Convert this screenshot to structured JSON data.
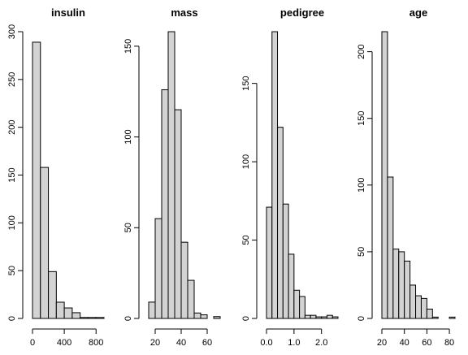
{
  "colors": {
    "bar_fill": "#d3d3d3",
    "bar_stroke": "#000000",
    "axis": "#000000",
    "background": "#ffffff"
  },
  "chart_data": [
    {
      "type": "bar",
      "title": "insulin",
      "xlabel": "",
      "ylabel": "",
      "bins": [
        [
          0,
          100
        ],
        [
          100,
          200
        ],
        [
          200,
          300
        ],
        [
          300,
          400
        ],
        [
          400,
          500
        ],
        [
          500,
          600
        ],
        [
          600,
          700
        ],
        [
          700,
          800
        ],
        [
          800,
          900
        ]
      ],
      "values": [
        289,
        158,
        49,
        17,
        11,
        6,
        1,
        1,
        1
      ],
      "xticks": [
        0,
        400,
        800
      ],
      "xtick_labels": [
        "0",
        "400",
        "800"
      ],
      "yticks": [
        0,
        50,
        100,
        150,
        200,
        250,
        300
      ],
      "ytick_labels": [
        "0",
        "50",
        "100",
        "150",
        "200",
        "250",
        "300"
      ],
      "xlim": [
        0,
        900
      ],
      "ylim": [
        0,
        300
      ],
      "grid": false
    },
    {
      "type": "bar",
      "title": "mass",
      "xlabel": "",
      "ylabel": "",
      "bins": [
        [
          15,
          20
        ],
        [
          20,
          25
        ],
        [
          25,
          30
        ],
        [
          30,
          35
        ],
        [
          35,
          40
        ],
        [
          40,
          45
        ],
        [
          45,
          50
        ],
        [
          50,
          55
        ],
        [
          55,
          60
        ],
        [
          60,
          65
        ],
        [
          65,
          70
        ]
      ],
      "values": [
        9,
        55,
        126,
        158,
        115,
        42,
        21,
        3,
        2,
        0,
        1
      ],
      "xticks": [
        20,
        40,
        60
      ],
      "xtick_labels": [
        "20",
        "40",
        "60"
      ],
      "yticks": [
        0,
        50,
        100,
        150
      ],
      "ytick_labels": [
        "0",
        "50",
        "100",
        "150"
      ],
      "xlim": [
        15,
        70
      ],
      "ylim": [
        0,
        158
      ],
      "grid": false
    },
    {
      "type": "bar",
      "title": "pedigree",
      "xlabel": "",
      "ylabel": "",
      "bins": [
        [
          0,
          0.2
        ],
        [
          0.2,
          0.4
        ],
        [
          0.4,
          0.6
        ],
        [
          0.6,
          0.8
        ],
        [
          0.8,
          1.0
        ],
        [
          1.0,
          1.2
        ],
        [
          1.2,
          1.4
        ],
        [
          1.4,
          1.6
        ],
        [
          1.6,
          1.8
        ],
        [
          1.8,
          2.0
        ],
        [
          2.0,
          2.2
        ],
        [
          2.2,
          2.4
        ],
        [
          2.4,
          2.6
        ]
      ],
      "values": [
        71,
        183,
        122,
        73,
        41,
        18,
        14,
        2,
        2,
        1,
        1,
        2,
        1
      ],
      "xticks": [
        0.0,
        1.0,
        2.0
      ],
      "xtick_labels": [
        "0.0",
        "1.0",
        "2.0"
      ],
      "yticks": [
        0,
        50,
        100,
        150
      ],
      "ytick_labels": [
        "0",
        "50",
        "100",
        "150"
      ],
      "xlim": [
        0,
        2.6
      ],
      "ylim": [
        0,
        183
      ],
      "grid": false
    },
    {
      "type": "bar",
      "title": "age",
      "xlabel": "",
      "ylabel": "",
      "bins": [
        [
          20,
          25
        ],
        [
          25,
          30
        ],
        [
          30,
          35
        ],
        [
          35,
          40
        ],
        [
          40,
          45
        ],
        [
          45,
          50
        ],
        [
          50,
          55
        ],
        [
          55,
          60
        ],
        [
          60,
          65
        ],
        [
          65,
          70
        ],
        [
          70,
          75
        ],
        [
          75,
          80
        ],
        [
          80,
          85
        ]
      ],
      "values": [
        215,
        106,
        52,
        50,
        43,
        25,
        17,
        15,
        7,
        1,
        0,
        0,
        1
      ],
      "xticks": [
        20,
        40,
        60,
        80
      ],
      "xtick_labels": [
        "20",
        "40",
        "60",
        "80"
      ],
      "yticks": [
        0,
        50,
        100,
        150,
        200
      ],
      "ytick_labels": [
        "0",
        "50",
        "100",
        "150",
        "200"
      ],
      "xlim": [
        20,
        85
      ],
      "ylim": [
        0,
        215
      ],
      "grid": false
    }
  ]
}
